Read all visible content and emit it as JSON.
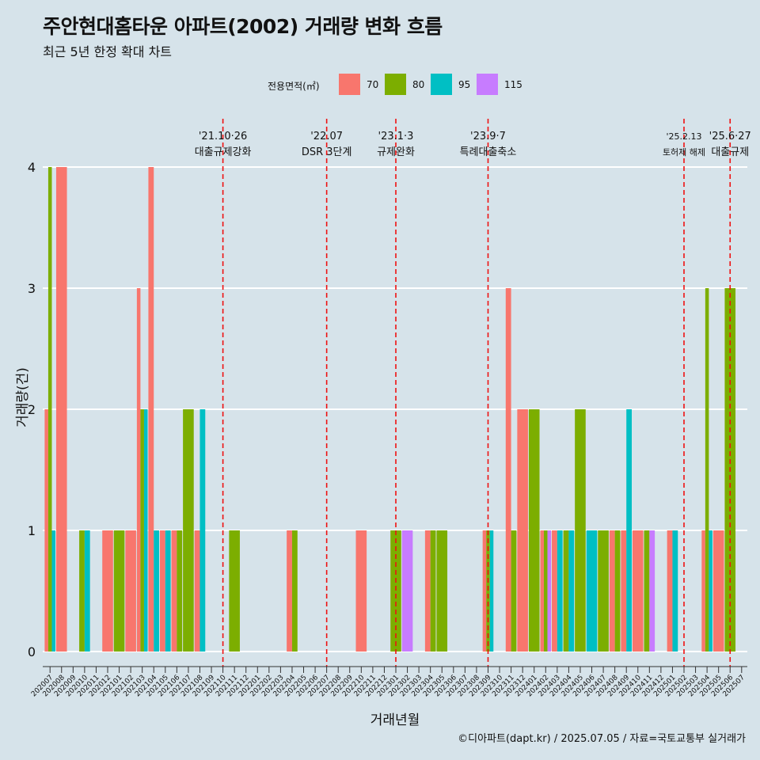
{
  "title": "주안현대홈타운 아파트(2002) 거래량 변화 흐름",
  "subtitle": "최근 5년 한정 확대 차트",
  "caption": "©디아파트(dapt.kr) / 2025.07.05 / 자료=국토교통부 실거래가",
  "legend": {
    "title": "전용면적(㎡)",
    "items": [
      {
        "label": "70",
        "color": "#F8766D"
      },
      {
        "label": "80",
        "color": "#7CAE00"
      },
      {
        "label": "95",
        "color": "#00BFC4"
      },
      {
        "label": "115",
        "color": "#C77CFF"
      }
    ]
  },
  "chart_data": {
    "type": "bar",
    "xlabel": "거래년월",
    "ylabel": "거래량(건)",
    "ylim": [
      0,
      4
    ],
    "yticks": [
      0,
      1,
      2,
      3,
      4
    ],
    "grid": true,
    "legend_position": "top",
    "categories": [
      "202007",
      "202008",
      "202009",
      "202010",
      "202011",
      "202012",
      "202101",
      "202102",
      "202103",
      "202104",
      "202105",
      "202106",
      "202107",
      "202108",
      "202109",
      "202110",
      "202111",
      "202112",
      "202201",
      "202202",
      "202203",
      "202204",
      "202205",
      "202206",
      "202207",
      "202208",
      "202209",
      "202210",
      "202211",
      "202212",
      "202301",
      "202302",
      "202303",
      "202304",
      "202305",
      "202306",
      "202307",
      "202308",
      "202309",
      "202310",
      "202311",
      "202312",
      "202401",
      "202402",
      "202403",
      "202404",
      "202405",
      "202406",
      "202407",
      "202408",
      "202409",
      "202410",
      "202411",
      "202412",
      "202501",
      "202502",
      "202503",
      "202504",
      "202505",
      "202506",
      "202507"
    ],
    "series": [
      {
        "name": "70",
        "color": "#F8766D",
        "values": [
          2,
          4,
          0,
          0,
          0,
          1,
          0,
          1,
          3,
          4,
          1,
          1,
          0,
          1,
          0,
          0,
          0,
          0,
          0,
          0,
          0,
          1,
          0,
          0,
          0,
          0,
          0,
          1,
          0,
          0,
          0,
          0,
          0,
          1,
          0,
          0,
          0,
          0,
          1,
          0,
          3,
          2,
          0,
          1,
          1,
          0,
          0,
          0,
          0,
          1,
          1,
          1,
          0,
          0,
          1,
          0,
          0,
          1,
          1,
          0,
          0
        ]
      },
      {
        "name": "80",
        "color": "#7CAE00",
        "values": [
          4,
          0,
          0,
          1,
          0,
          0,
          1,
          0,
          2,
          0,
          0,
          1,
          2,
          0,
          0,
          0,
          1,
          0,
          0,
          0,
          0,
          1,
          0,
          0,
          0,
          0,
          0,
          0,
          0,
          0,
          1,
          0,
          0,
          1,
          1,
          0,
          0,
          0,
          1,
          0,
          1,
          0,
          2,
          1,
          0,
          1,
          2,
          0,
          1,
          1,
          0,
          0,
          1,
          0,
          0,
          0,
          0,
          3,
          0,
          3,
          0
        ]
      },
      {
        "name": "95",
        "color": "#00BFC4",
        "values": [
          1,
          0,
          0,
          1,
          0,
          0,
          0,
          0,
          2,
          1,
          1,
          0,
          0,
          2,
          0,
          0,
          0,
          0,
          0,
          0,
          0,
          0,
          0,
          0,
          0,
          0,
          0,
          0,
          0,
          0,
          0,
          0,
          0,
          0,
          0,
          0,
          0,
          0,
          1,
          0,
          0,
          0,
          0,
          0,
          1,
          1,
          0,
          1,
          0,
          0,
          2,
          0,
          0,
          0,
          1,
          0,
          0,
          1,
          0,
          0,
          0
        ]
      },
      {
        "name": "115",
        "color": "#C77CFF",
        "values": [
          0,
          0,
          0,
          0,
          0,
          0,
          0,
          0,
          0,
          0,
          0,
          0,
          0,
          0,
          0,
          0,
          0,
          0,
          0,
          0,
          0,
          0,
          0,
          0,
          0,
          0,
          0,
          0,
          0,
          0,
          0,
          1,
          0,
          0,
          0,
          0,
          0,
          0,
          0,
          0,
          0,
          0,
          0,
          1,
          0,
          0,
          0,
          0,
          0,
          0,
          0,
          0,
          1,
          0,
          0,
          0,
          0,
          0,
          0,
          0,
          0
        ]
      }
    ],
    "events": [
      {
        "date": "202110",
        "line1": "'21.10·26",
        "line2": "대출규제강화"
      },
      {
        "date": "202207",
        "line1": "'22.07",
        "line2": "DSR 3단계"
      },
      {
        "date": "202301",
        "line1": "'23.1·3",
        "line2": "규제완화"
      },
      {
        "date": "202309",
        "line1": "'23.9·7",
        "line2": "특례대출축소"
      },
      {
        "date": "202502",
        "line1": "'25.2.13",
        "line2": "토허제 해제"
      },
      {
        "date": "202506",
        "line1": "'25.6·27",
        "line2": "대출규제"
      }
    ]
  }
}
